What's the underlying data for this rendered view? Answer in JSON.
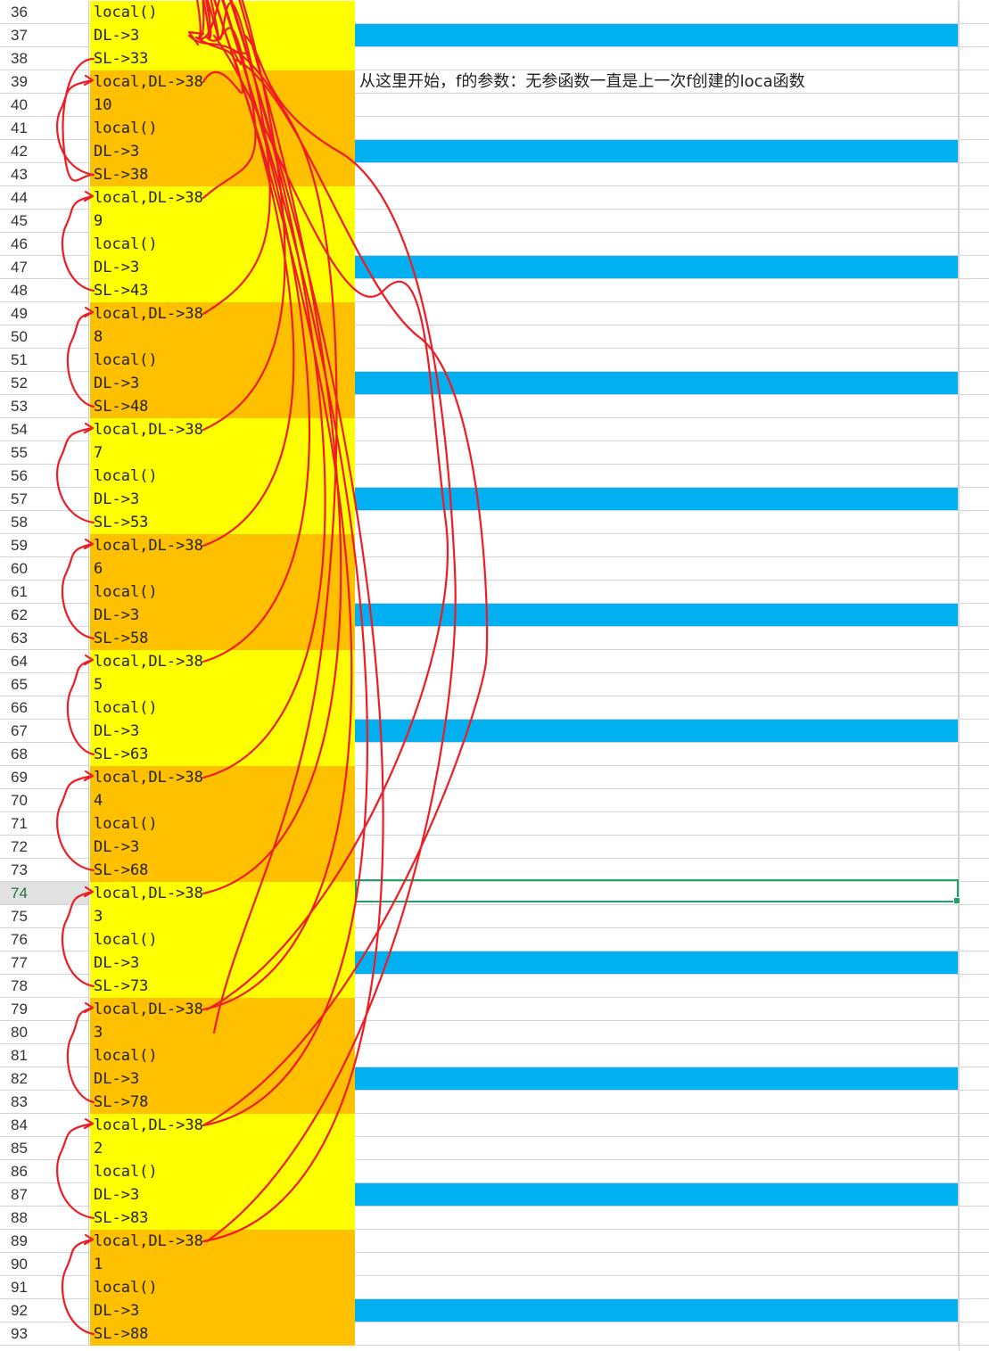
{
  "sheet": {
    "rows": [
      {
        "num": "36",
        "text": "local()",
        "fill": "yellow",
        "blue": false
      },
      {
        "num": "37",
        "text": "DL->3",
        "fill": "yellow",
        "blue": true
      },
      {
        "num": "38",
        "text": "SL->33",
        "fill": "yellow",
        "blue": false
      },
      {
        "num": "39",
        "text": "local,DL->38",
        "fill": "orange",
        "blue": false
      },
      {
        "num": "40",
        "text": "10",
        "fill": "orange",
        "blue": false
      },
      {
        "num": "41",
        "text": "local()",
        "fill": "orange",
        "blue": false
      },
      {
        "num": "42",
        "text": "DL->3",
        "fill": "orange",
        "blue": true
      },
      {
        "num": "43",
        "text": "SL->38",
        "fill": "orange",
        "blue": false
      },
      {
        "num": "44",
        "text": "local,DL->38",
        "fill": "yellow",
        "blue": false
      },
      {
        "num": "45",
        "text": "9",
        "fill": "yellow",
        "blue": false
      },
      {
        "num": "46",
        "text": "local()",
        "fill": "yellow",
        "blue": false
      },
      {
        "num": "47",
        "text": "DL->3",
        "fill": "yellow",
        "blue": true
      },
      {
        "num": "48",
        "text": "SL->43",
        "fill": "yellow",
        "blue": false
      },
      {
        "num": "49",
        "text": "local,DL->38",
        "fill": "orange",
        "blue": false
      },
      {
        "num": "50",
        "text": "8",
        "fill": "orange",
        "blue": false
      },
      {
        "num": "51",
        "text": "local()",
        "fill": "orange",
        "blue": false
      },
      {
        "num": "52",
        "text": "DL->3",
        "fill": "orange",
        "blue": true
      },
      {
        "num": "53",
        "text": "SL->48",
        "fill": "orange",
        "blue": false
      },
      {
        "num": "54",
        "text": "local,DL->38",
        "fill": "yellow",
        "blue": false
      },
      {
        "num": "55",
        "text": "7",
        "fill": "yellow",
        "blue": false
      },
      {
        "num": "56",
        "text": "local()",
        "fill": "yellow",
        "blue": false
      },
      {
        "num": "57",
        "text": "DL->3",
        "fill": "yellow",
        "blue": true
      },
      {
        "num": "58",
        "text": "SL->53",
        "fill": "yellow",
        "blue": false
      },
      {
        "num": "59",
        "text": "local,DL->38",
        "fill": "orange",
        "blue": false
      },
      {
        "num": "60",
        "text": "6",
        "fill": "orange",
        "blue": false
      },
      {
        "num": "61",
        "text": "local()",
        "fill": "orange",
        "blue": false
      },
      {
        "num": "62",
        "text": "DL->3",
        "fill": "orange",
        "blue": true
      },
      {
        "num": "63",
        "text": "SL->58",
        "fill": "orange",
        "blue": false
      },
      {
        "num": "64",
        "text": "local,DL->38",
        "fill": "yellow",
        "blue": false
      },
      {
        "num": "65",
        "text": "5",
        "fill": "yellow",
        "blue": false
      },
      {
        "num": "66",
        "text": "local()",
        "fill": "yellow",
        "blue": false
      },
      {
        "num": "67",
        "text": "DL->3",
        "fill": "yellow",
        "blue": true
      },
      {
        "num": "68",
        "text": "SL->63",
        "fill": "yellow",
        "blue": false
      },
      {
        "num": "69",
        "text": "local,DL->38",
        "fill": "orange",
        "blue": false
      },
      {
        "num": "70",
        "text": "4",
        "fill": "orange",
        "blue": false
      },
      {
        "num": "71",
        "text": "local()",
        "fill": "orange",
        "blue": false
      },
      {
        "num": "72",
        "text": "DL->3",
        "fill": "orange",
        "blue": false
      },
      {
        "num": "73",
        "text": "SL->68",
        "fill": "orange",
        "blue": false
      },
      {
        "num": "74",
        "text": "local,DL->38",
        "fill": "yellow",
        "blue": false
      },
      {
        "num": "75",
        "text": "3",
        "fill": "yellow",
        "blue": false
      },
      {
        "num": "76",
        "text": "local()",
        "fill": "yellow",
        "blue": false
      },
      {
        "num": "77",
        "text": "DL->3",
        "fill": "yellow",
        "blue": true
      },
      {
        "num": "78",
        "text": "SL->73",
        "fill": "yellow",
        "blue": false
      },
      {
        "num": "79",
        "text": "local,DL->38",
        "fill": "orange",
        "blue": false
      },
      {
        "num": "80",
        "text": "3",
        "fill": "orange",
        "blue": false
      },
      {
        "num": "81",
        "text": "local()",
        "fill": "orange",
        "blue": false
      },
      {
        "num": "82",
        "text": "DL->3",
        "fill": "orange",
        "blue": true
      },
      {
        "num": "83",
        "text": "SL->78",
        "fill": "orange",
        "blue": false
      },
      {
        "num": "84",
        "text": "local,DL->38",
        "fill": "yellow",
        "blue": false
      },
      {
        "num": "85",
        "text": "2",
        "fill": "yellow",
        "blue": false
      },
      {
        "num": "86",
        "text": "local()",
        "fill": "yellow",
        "blue": false
      },
      {
        "num": "87",
        "text": "DL->3",
        "fill": "yellow",
        "blue": true
      },
      {
        "num": "88",
        "text": "SL->83",
        "fill": "yellow",
        "blue": false
      },
      {
        "num": "89",
        "text": "local,DL->38",
        "fill": "orange",
        "blue": false
      },
      {
        "num": "90",
        "text": "1",
        "fill": "orange",
        "blue": false
      },
      {
        "num": "91",
        "text": "local()",
        "fill": "orange",
        "blue": false
      },
      {
        "num": "92",
        "text": "DL->3",
        "fill": "orange",
        "blue": true
      },
      {
        "num": "93",
        "text": "SL->88",
        "fill": "orange",
        "blue": false
      }
    ],
    "note": "从这里开始，f的参数：无参函数一直是上一次f创建的loca函数",
    "active_row": "74"
  },
  "colors": {
    "yellow": "#ffff00",
    "orange": "#ffc000",
    "blue": "#00b0f0",
    "annotation": "#ee1c24",
    "selection": "#21a366"
  }
}
